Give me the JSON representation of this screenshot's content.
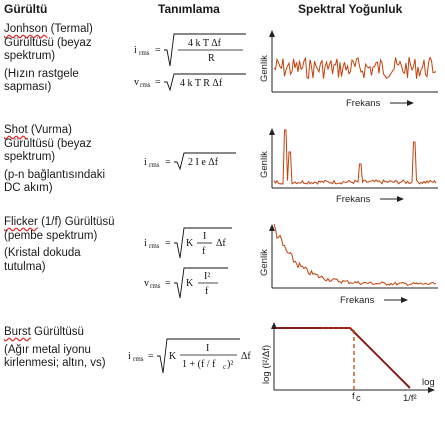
{
  "headers": {
    "noise": "Gürültü",
    "definition": "Tanımlama",
    "spectral": "Spektral Yoğunluk"
  },
  "rows": [
    {
      "title_name": "Jonhson",
      "title_rest": " (Termal) Gürültüsü (beyaz spektrum)",
      "note": "(Hızın rastgele sapması)",
      "formula_irms": "i",
      "formula_irms_sub": "rms",
      "formula_irms_num": "4 k T Δf",
      "formula_irms_den": "R",
      "formula_vrms": "v",
      "formula_vrms_sub": "rms",
      "formula_vrms_body": "4 k T R Δf",
      "ylabel": "Genlik",
      "xlabel": "Frekans"
    },
    {
      "title_name": "Shot",
      "title_rest": " (Vurma) Gürültüsü (beyaz spektrum)",
      "note": "(p-n bağlantısındaki DC akım)",
      "formula_irms": "i",
      "formula_irms_sub": "rms",
      "formula_irms_body": "2 I e Δf",
      "ylabel": "Genlik",
      "xlabel": "Frekans"
    },
    {
      "title_name": "Flicker",
      "title_rest": " (1/f) Gürültüsü (pembe spektrum)",
      "note": "(Kristal dokuda tutulma)",
      "formula_irms": "i",
      "formula_irms_sub": "rms",
      "formula_irms_k": "K",
      "formula_irms_num": "I",
      "formula_irms_den": "f",
      "formula_irms_df": "Δf",
      "formula_vrms": "v",
      "formula_vrms_sub": "rms",
      "formula_vrms_k": "K",
      "formula_vrms_num": "I²",
      "formula_vrms_den": "f",
      "ylabel": "Genlik",
      "xlabel": "Frekans"
    },
    {
      "title_name": "Burst",
      "title_rest": " Gürültüsü",
      "note": "(Ağır metal iyonu kirlenmesi; altın, vs)",
      "formula_irms": "i",
      "formula_irms_sub": "rms",
      "formula_irms_k": "K",
      "formula_irms_num": "I",
      "formula_irms_den": "1 + (f / f",
      "formula_irms_den_sub": "c",
      "formula_irms_den_end": ")²",
      "formula_irms_df": "Δf",
      "ylabel": "log (I²/Δf)",
      "xlabel": "log",
      "fc_label": "f",
      "fc_sub": "c",
      "slope_label": "1/f²"
    }
  ],
  "colors": {
    "trace": "#c2410c",
    "burst_line": "#8b1c1c",
    "axis": "#222222"
  }
}
